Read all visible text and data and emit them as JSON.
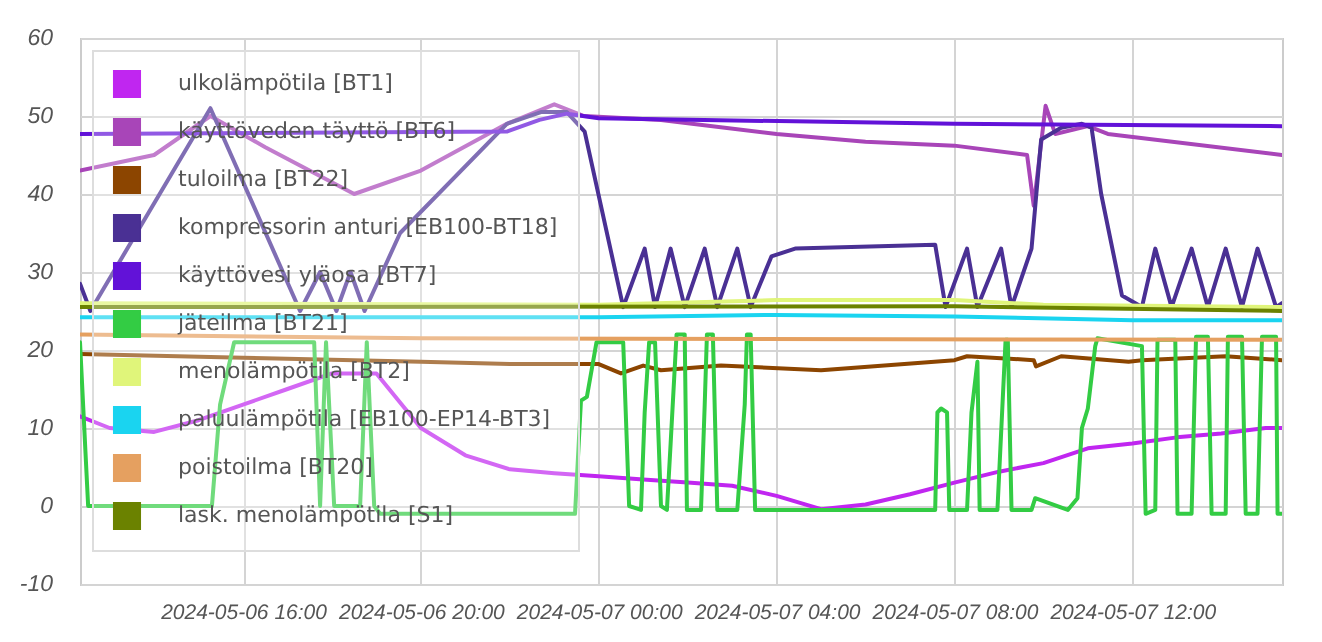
{
  "chart_data": {
    "type": "line",
    "xlim": [
      "2024-05-06T12:20",
      "2024-05-07T15:22"
    ],
    "xticks": [
      {
        "value": "2024-05-06T16:00",
        "label": "2024-05-06 16:00"
      },
      {
        "value": "2024-05-06T20:00",
        "label": "2024-05-06 20:00"
      },
      {
        "value": "2024-05-07T00:00",
        "label": "2024-05-07 00:00"
      },
      {
        "value": "2024-05-07T04:00",
        "label": "2024-05-07 04:00"
      },
      {
        "value": "2024-05-07T08:00",
        "label": "2024-05-07 08:00"
      },
      {
        "value": "2024-05-07T12:00",
        "label": "2024-05-07 12:00"
      }
    ],
    "ylim": [
      -10,
      60
    ],
    "yticks": [
      -10,
      0,
      10,
      20,
      30,
      40,
      50,
      60
    ],
    "grid": true,
    "legend": "top left",
    "series": [
      {
        "name": "ulkolämpötila [BT1]",
        "color": "#c026f0",
        "x": [
          "2024-05-06T12:20",
          "2024-05-06T13:00",
          "2024-05-06T14:00",
          "2024-05-06T15:00",
          "2024-05-06T16:00",
          "2024-05-06T17:00",
          "2024-05-06T18:00",
          "2024-05-06T19:00",
          "2024-05-06T20:00",
          "2024-05-06T21:00",
          "2024-05-06T22:00",
          "2024-05-06T23:00",
          "2024-05-07T00:00",
          "2024-05-07T01:00",
          "2024-05-07T02:00",
          "2024-05-07T03:00",
          "2024-05-07T04:00",
          "2024-05-07T05:00",
          "2024-05-07T06:00",
          "2024-05-07T07:00",
          "2024-05-07T08:00",
          "2024-05-07T09:00",
          "2024-05-07T10:00",
          "2024-05-07T11:00",
          "2024-05-07T12:00",
          "2024-05-07T13:00",
          "2024-05-07T14:00",
          "2024-05-07T15:00",
          "2024-05-07T15:22"
        ],
        "values": [
          11.5,
          10,
          9.5,
          11,
          13,
          15,
          17,
          17,
          10,
          6.5,
          4.7,
          4.2,
          3.8,
          3.4,
          3,
          2.6,
          1.3,
          -0.4,
          0.2,
          1.5,
          3,
          4.4,
          5.5,
          7.4,
          8,
          8.8,
          9.3,
          10,
          10
        ]
      },
      {
        "name": "käyttöveden täyttö [BT6]",
        "color": "#a845b8",
        "x": [
          "2024-05-06T12:20",
          "2024-05-06T14:00",
          "2024-05-06T15:16",
          "2024-05-06T16:30",
          "2024-05-06T18:30",
          "2024-05-06T20:00",
          "2024-05-06T21:56",
          "2024-05-06T23:00",
          "2024-05-06T23:40",
          "2024-05-07T01:24",
          "2024-05-07T04:00",
          "2024-05-07T06:00",
          "2024-05-07T08:00",
          "2024-05-07T09:38",
          "2024-05-07T09:47",
          "2024-05-07T10:03",
          "2024-05-07T10:16",
          "2024-05-07T11:00",
          "2024-05-07T11:27",
          "2024-05-07T15:22"
        ],
        "values": [
          43,
          45,
          50,
          46,
          40,
          43,
          49,
          51.5,
          50,
          49.5,
          47.7,
          46.7,
          46.2,
          45,
          38.5,
          51.3,
          47.7,
          48.7,
          47.7,
          45
        ]
      },
      {
        "name": "tuloilma [BT22]",
        "color": "#8c4500",
        "x": [
          "2024-05-06T12:20",
          "2024-05-06T16:00",
          "2024-05-06T20:00",
          "2024-05-06T22:00",
          "2024-05-07T00:00",
          "2024-05-07T00:30",
          "2024-05-07T01:00",
          "2024-05-07T01:24",
          "2024-05-07T02:45",
          "2024-05-07T05:00",
          "2024-05-07T08:00",
          "2024-05-07T08:17",
          "2024-05-07T09:47",
          "2024-05-07T09:50",
          "2024-05-07T10:24",
          "2024-05-07T11:55",
          "2024-05-07T12:13",
          "2024-05-07T14:06",
          "2024-05-07T15:22"
        ],
        "values": [
          19.5,
          19,
          18.5,
          18.2,
          18.2,
          17,
          18,
          17.4,
          18,
          17.4,
          18.7,
          19.2,
          18.7,
          17.9,
          19.2,
          18.5,
          18.7,
          19.2,
          18.7
        ]
      },
      {
        "name": "kompressorin anturi [EB100-BT18]",
        "color": "#4a3094",
        "x": [
          "2024-05-06T12:20",
          "2024-05-06T12:34",
          "2024-05-06T15:16",
          "2024-05-06T17:17",
          "2024-05-06T17:44",
          "2024-05-06T18:06",
          "2024-05-06T18:25",
          "2024-05-06T18:44",
          "2024-05-06T19:32",
          "2024-05-06T21:56",
          "2024-05-06T22:42",
          "2024-05-06T23:17",
          "2024-05-06T23:41",
          "2024-05-07T00:33",
          "2024-05-07T01:02",
          "2024-05-07T01:16",
          "2024-05-07T01:37",
          "2024-05-07T01:56",
          "2024-05-07T02:23",
          "2024-05-07T02:40",
          "2024-05-07T03:07",
          "2024-05-07T03:25",
          "2024-05-07T03:53",
          "2024-05-07T04:25",
          "2024-05-07T07:34",
          "2024-05-07T07:48",
          "2024-05-07T08:17",
          "2024-05-07T08:31",
          "2024-05-07T09:03",
          "2024-05-07T09:17",
          "2024-05-07T09:44",
          "2024-05-07T09:57",
          "2024-05-07T10:24",
          "2024-05-07T10:52",
          "2024-05-07T11:05",
          "2024-05-07T11:18",
          "2024-05-07T11:46",
          "2024-05-07T12:13",
          "2024-05-07T12:31",
          "2024-05-07T12:53",
          "2024-05-07T13:20",
          "2024-05-07T13:42",
          "2024-05-07T14:06",
          "2024-05-07T14:28",
          "2024-05-07T14:49",
          "2024-05-07T15:14",
          "2024-05-07T15:22"
        ],
        "values": [
          28.5,
          25,
          51,
          25,
          30,
          25,
          30,
          25,
          35,
          49,
          50.5,
          50.5,
          48,
          25.5,
          33,
          25.5,
          33,
          25.5,
          33,
          25.5,
          33,
          25.5,
          32,
          33,
          33.5,
          25.5,
          33,
          25.5,
          33,
          25.5,
          33,
          47,
          48.5,
          49,
          48.5,
          40,
          27,
          25.5,
          33,
          25.5,
          33,
          25.5,
          33,
          25.5,
          33,
          25.5,
          26
        ]
      },
      {
        "name": "käyttövesi yläosa [BT7]",
        "color": "#6212d8",
        "x": [
          "2024-05-06T12:20",
          "2024-05-06T21:56",
          "2024-05-06T22:40",
          "2024-05-06T23:17",
          "2024-05-07T00:00",
          "2024-05-07T08:00",
          "2024-05-07T15:22"
        ],
        "values": [
          47.7,
          48,
          49.5,
          50.3,
          49.7,
          49,
          48.7
        ]
      },
      {
        "name": "jäteilma [BT21]",
        "color": "#33cc44",
        "x": [
          "2024-05-06T12:20",
          "2024-05-06T12:31",
          "2024-05-06T15:18",
          "2024-05-06T15:29",
          "2024-05-06T15:48",
          "2024-05-06T17:36",
          "2024-05-06T17:44",
          "2024-05-06T17:52",
          "2024-05-06T18:03",
          "2024-05-06T18:38",
          "2024-05-06T18:47",
          "2024-05-06T18:57",
          "2024-05-06T19:05",
          "2024-05-06T23:28",
          "2024-05-06T23:36",
          "2024-05-06T23:44",
          "2024-05-06T23:57",
          "2024-05-07T00:33",
          "2024-05-07T00:41",
          "2024-05-07T00:57",
          "2024-05-07T01:02",
          "2024-05-07T01:08",
          "2024-05-07T01:16",
          "2024-05-07T01:24",
          "2024-05-07T01:32",
          "2024-05-07T01:37",
          "2024-05-07T01:45",
          "2024-05-07T01:56",
          "2024-05-07T01:59",
          "2024-05-07T02:18",
          "2024-05-07T02:23",
          "2024-05-07T02:26",
          "2024-05-07T02:34",
          "2024-05-07T02:40",
          "2024-05-07T03:07",
          "2024-05-07T03:17",
          "2024-05-07T03:20",
          "2024-05-07T03:25",
          "2024-05-07T03:31",
          "2024-05-07T07:34",
          "2024-05-07T07:37",
          "2024-05-07T07:42",
          "2024-05-07T07:50",
          "2024-05-07T07:53",
          "2024-05-07T08:17",
          "2024-05-07T08:23",
          "2024-05-07T08:31",
          "2024-05-07T08:34",
          "2024-05-07T08:58",
          "2024-05-07T09:09",
          "2024-05-07T09:12",
          "2024-05-07T09:17",
          "2024-05-07T09:44",
          "2024-05-07T09:49",
          "2024-05-07T10:33",
          "2024-05-07T10:46",
          "2024-05-07T10:52",
          "2024-05-07T11:00",
          "2024-05-07T11:10",
          "2024-05-07T11:13",
          "2024-05-07T12:13",
          "2024-05-07T12:18",
          "2024-05-07T12:31",
          "2024-05-07T12:34",
          "2024-05-07T12:58",
          "2024-05-07T13:01",
          "2024-05-07T13:20",
          "2024-05-07T13:26",
          "2024-05-07T13:42",
          "2024-05-07T13:47",
          "2024-05-07T14:06",
          "2024-05-07T14:09",
          "2024-05-07T14:28",
          "2024-05-07T14:33",
          "2024-05-07T14:49",
          "2024-05-07T14:55",
          "2024-05-07T15:14",
          "2024-05-07T15:16",
          "2024-05-07T15:22"
        ],
        "values": [
          21,
          0,
          0,
          13,
          21,
          21,
          0,
          21,
          0,
          0,
          21,
          0,
          -1,
          -1,
          13.5,
          14,
          21,
          21,
          0,
          -0.5,
          12,
          21,
          21,
          0,
          -0.5,
          8,
          22,
          22,
          -0.5,
          -0.5,
          13,
          22,
          22,
          -0.5,
          -0.5,
          13,
          22,
          22,
          -0.5,
          -0.5,
          12,
          12.5,
          12,
          -0.5,
          -0.5,
          12,
          18.5,
          -0.5,
          -0.5,
          21.3,
          21.3,
          -0.5,
          -0.5,
          1,
          -0.5,
          1,
          10,
          12.5,
          20.5,
          21.5,
          20.5,
          -1,
          -0.5,
          21.3,
          21.3,
          -1,
          -1,
          21.7,
          21.7,
          -1,
          -1,
          21.7,
          21.7,
          -1,
          -1,
          21.7,
          21.7,
          -1,
          -1
        ]
      },
      {
        "name": "menolämpötila [BT2]",
        "color": "#e0f57a",
        "x": [
          "2024-05-06T12:20",
          "2024-05-07T00:00",
          "2024-05-07T04:00",
          "2024-05-07T08:00",
          "2024-05-07T10:00",
          "2024-05-07T15:22"
        ],
        "values": [
          26,
          25.8,
          26.4,
          26.4,
          25.8,
          25.5
        ]
      },
      {
        "name": "paluulämpötila [EB100-EP14-BT3]",
        "color": "#1ad4f0",
        "x": [
          "2024-05-06T12:20",
          "2024-05-07T00:00",
          "2024-05-07T04:00",
          "2024-05-07T08:00",
          "2024-05-07T12:00",
          "2024-05-07T15:22"
        ],
        "values": [
          24.2,
          24.2,
          24.5,
          24.3,
          23.8,
          23.8
        ]
      },
      {
        "name": "poistoilma [BT20]",
        "color": "#e5a060",
        "x": [
          "2024-05-06T12:20",
          "2024-05-06T20:00",
          "2024-05-07T15:22"
        ],
        "values": [
          22,
          21.5,
          21.3
        ]
      },
      {
        "name": "lask. menolämpötila [S1]",
        "color": "#6b8200",
        "x": [
          "2024-05-06T12:20",
          "2024-05-07T08:00",
          "2024-05-07T15:22"
        ],
        "values": [
          25.5,
          25.6,
          25
        ]
      }
    ]
  }
}
